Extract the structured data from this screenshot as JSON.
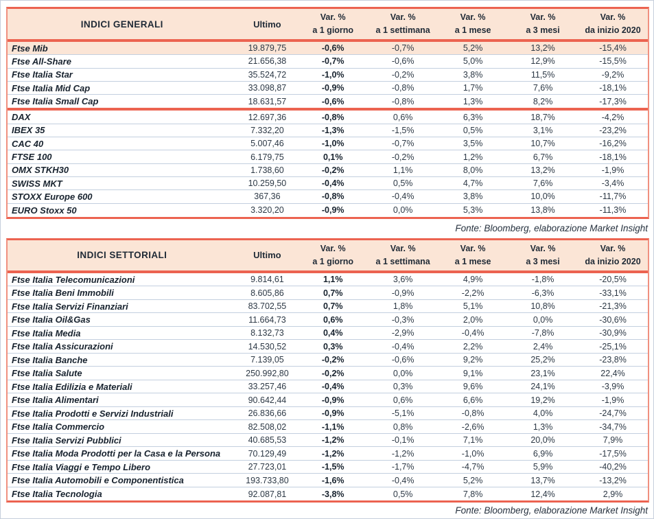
{
  "colors": {
    "accent": "#EC6350",
    "side_border": "#F0907F",
    "header_bg": "#FBE5D6",
    "highlight_row_bg": "#FBE5D6",
    "row_divider": "#C3CFDF",
    "text_dark": "#17222E"
  },
  "tables": [
    {
      "title": "INDICI GENERALI",
      "ultimo_label": "Ultimo",
      "columns": [
        {
          "line1": "Var. %",
          "line2": "a 1 giorno"
        },
        {
          "line1": "Var. %",
          "line2": "a 1 settimana"
        },
        {
          "line1": "Var. %",
          "line2": "a 1 mese"
        },
        {
          "line1": "Var. %",
          "line2": "a 3 mesi"
        },
        {
          "line1": "Var. %",
          "line2": "da inizio 2020"
        }
      ],
      "sections": [
        {
          "rows": [
            {
              "name": "Ftse Mib",
              "highlight": true,
              "values": [
                "19.879,75",
                "-0,6%",
                "-0,7%",
                "5,2%",
                "13,2%",
                "-15,4%"
              ]
            },
            {
              "name": "Ftse All-Share",
              "values": [
                "21.656,38",
                "-0,7%",
                "-0,6%",
                "5,0%",
                "12,9%",
                "-15,5%"
              ]
            },
            {
              "name": "Ftse Italia Star",
              "values": [
                "35.524,72",
                "-1,0%",
                "-0,2%",
                "3,8%",
                "11,5%",
                "-9,2%"
              ]
            },
            {
              "name": "Ftse Italia Mid Cap",
              "values": [
                "33.098,87",
                "-0,9%",
                "-0,8%",
                "1,7%",
                "7,6%",
                "-18,1%"
              ]
            },
            {
              "name": "Ftse Italia Small Cap",
              "values": [
                "18.631,57",
                "-0,6%",
                "-0,8%",
                "1,3%",
                "8,2%",
                "-17,3%"
              ]
            }
          ]
        },
        {
          "rows": [
            {
              "name": "DAX",
              "values": [
                "12.697,36",
                "-0,8%",
                "0,6%",
                "6,3%",
                "18,7%",
                "-4,2%"
              ]
            },
            {
              "name": "IBEX 35",
              "values": [
                "7.332,20",
                "-1,3%",
                "-1,5%",
                "0,5%",
                "3,1%",
                "-23,2%"
              ]
            },
            {
              "name": "CAC 40",
              "values": [
                "5.007,46",
                "-1,0%",
                "-0,7%",
                "3,5%",
                "10,7%",
                "-16,2%"
              ]
            },
            {
              "name": "FTSE 100",
              "values": [
                "6.179,75",
                "0,1%",
                "-0,2%",
                "1,2%",
                "6,7%",
                "-18,1%"
              ]
            },
            {
              "name": "OMX STKH30",
              "values": [
                "1.738,60",
                "-0,2%",
                "1,1%",
                "8,0%",
                "13,2%",
                "-1,9%"
              ]
            },
            {
              "name": "SWISS MKT",
              "values": [
                "10.259,50",
                "-0,4%",
                "0,5%",
                "4,7%",
                "7,6%",
                "-3,4%"
              ]
            },
            {
              "name": "STOXX Europe 600",
              "values": [
                "367,36",
                "-0,8%",
                "-0,4%",
                "3,8%",
                "10,0%",
                "-11,7%"
              ]
            },
            {
              "name": "EURO Stoxx 50",
              "values": [
                "3.320,20",
                "-0,9%",
                "0,0%",
                "5,3%",
                "13,8%",
                "-11,3%"
              ]
            }
          ]
        }
      ],
      "fonte": "Fonte: Bloomberg, elaborazione Market Insight"
    },
    {
      "title": "INDICI SETTORIALI",
      "ultimo_label": "Ultimo",
      "columns": [
        {
          "line1": "Var. %",
          "line2": "a 1 giorno"
        },
        {
          "line1": "Var. %",
          "line2": "a 1 settimana"
        },
        {
          "line1": "Var. %",
          "line2": "a 1 mese"
        },
        {
          "line1": "Var. %",
          "line2": "a 3 mesi"
        },
        {
          "line1": "Var. %",
          "line2": "da inizio 2020"
        }
      ],
      "sections": [
        {
          "rows": [
            {
              "name": "Ftse Italia Telecomunicazioni",
              "values": [
                "9.814,61",
                "1,1%",
                "3,6%",
                "4,9%",
                "-1,8%",
                "-20,5%"
              ]
            },
            {
              "name": "Ftse Italia Beni Immobili",
              "values": [
                "8.605,86",
                "0,7%",
                "-0,9%",
                "-2,2%",
                "-6,3%",
                "-33,1%"
              ]
            },
            {
              "name": "Ftse Italia Servizi Finanziari",
              "values": [
                "83.702,55",
                "0,7%",
                "1,8%",
                "5,1%",
                "10,8%",
                "-21,3%"
              ]
            },
            {
              "name": "Ftse Italia Oil&Gas",
              "values": [
                "11.664,73",
                "0,6%",
                "-0,3%",
                "2,0%",
                "0,0%",
                "-30,6%"
              ]
            },
            {
              "name": "Ftse Italia Media",
              "values": [
                "8.132,73",
                "0,4%",
                "-2,9%",
                "-0,4%",
                "-7,8%",
                "-30,9%"
              ]
            },
            {
              "name": "Ftse Italia Assicurazioni",
              "values": [
                "14.530,52",
                "0,3%",
                "-0,4%",
                "2,2%",
                "2,4%",
                "-25,1%"
              ]
            },
            {
              "name": "Ftse Italia Banche",
              "values": [
                "7.139,05",
                "-0,2%",
                "-0,6%",
                "9,2%",
                "25,2%",
                "-23,8%"
              ]
            },
            {
              "name": "Ftse Italia Salute",
              "values": [
                "250.992,80",
                "-0,2%",
                "0,0%",
                "9,1%",
                "23,1%",
                "22,4%"
              ]
            },
            {
              "name": "Ftse Italia Edilizia e Materiali",
              "values": [
                "33.257,46",
                "-0,4%",
                "0,3%",
                "9,6%",
                "24,1%",
                "-3,9%"
              ]
            },
            {
              "name": "Ftse Italia Alimentari",
              "values": [
                "90.642,44",
                "-0,9%",
                "0,6%",
                "6,6%",
                "19,2%",
                "-1,9%"
              ]
            },
            {
              "name": "Ftse Italia Prodotti e Servizi Industriali",
              "values": [
                "26.836,66",
                "-0,9%",
                "-5,1%",
                "-0,8%",
                "4,0%",
                "-24,7%"
              ]
            },
            {
              "name": "Ftse Italia Commercio",
              "values": [
                "82.508,02",
                "-1,1%",
                "0,8%",
                "-2,6%",
                "1,3%",
                "-34,7%"
              ]
            },
            {
              "name": "Ftse Italia Servizi Pubblici",
              "values": [
                "40.685,53",
                "-1,2%",
                "-0,1%",
                "7,1%",
                "20,0%",
                "7,9%"
              ]
            },
            {
              "name": "Ftse Italia Moda Prodotti per la Casa e la Persona",
              "values": [
                "70.129,49",
                "-1,2%",
                "-1,2%",
                "-1,0%",
                "6,9%",
                "-17,5%"
              ]
            },
            {
              "name": "Ftse Italia Viaggi e Tempo Libero",
              "values": [
                "27.723,01",
                "-1,5%",
                "-1,7%",
                "-4,7%",
                "5,9%",
                "-40,2%"
              ]
            },
            {
              "name": "Ftse Italia Automobili e Componentistica",
              "values": [
                "193.733,80",
                "-1,6%",
                "-0,4%",
                "5,2%",
                "13,7%",
                "-13,2%"
              ]
            },
            {
              "name": "Ftse Italia Tecnologia",
              "values": [
                "92.087,81",
                "-3,8%",
                "0,5%",
                "7,8%",
                "12,4%",
                "2,9%"
              ]
            }
          ]
        }
      ],
      "fonte": "Fonte: Bloomberg, elaborazione Market Insight"
    }
  ]
}
